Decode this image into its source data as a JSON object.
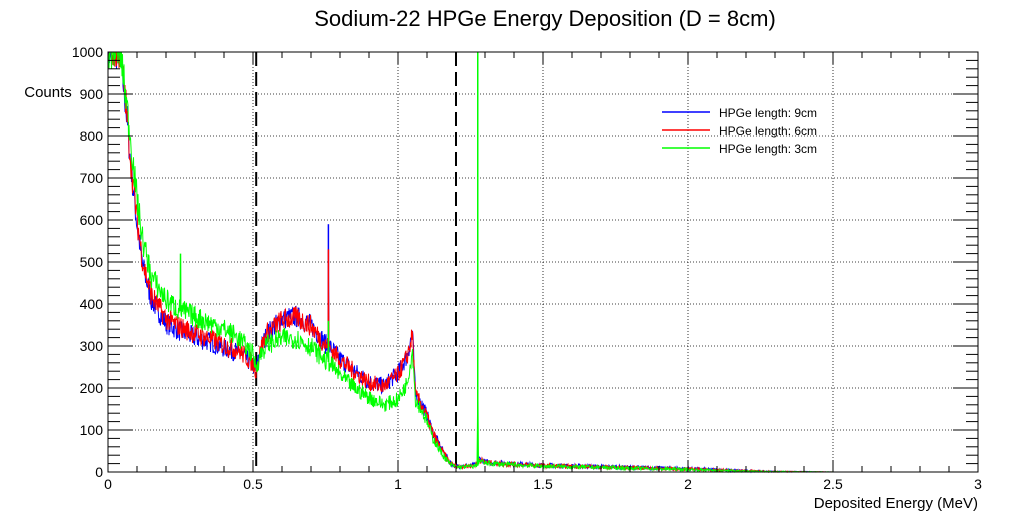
{
  "chart_data": {
    "type": "line",
    "title": "Sodium-22 HPGe Energy Deposition (D = 8cm)",
    "xlabel": "Deposited Energy (MeV)",
    "ylabel": "Counts",
    "xlim": [
      0,
      3
    ],
    "ylim": [
      0,
      1000
    ],
    "xticks": [
      "0",
      "0.5",
      "1",
      "1.5",
      "2",
      "2.5",
      "3"
    ],
    "xtick_values": [
      0,
      0.5,
      1,
      1.5,
      2,
      2.5,
      3
    ],
    "yticks": [
      "0",
      "100",
      "200",
      "300",
      "400",
      "500",
      "600",
      "700",
      "800",
      "900",
      "1000"
    ],
    "ytick_values": [
      0,
      100,
      200,
      300,
      400,
      500,
      600,
      700,
      800,
      900,
      1000
    ],
    "grid": true,
    "legend_position": "top-right",
    "vertical_markers": [
      {
        "x": 0.511,
        "style": "dashed"
      },
      {
        "x": 1.2,
        "style": "dashed"
      }
    ],
    "series": [
      {
        "name": "HPGe length: 9cm",
        "color": "#0000ff",
        "x": [
          0,
          0.03,
          0.04,
          0.05,
          0.06,
          0.08,
          0.1,
          0.12,
          0.15,
          0.2,
          0.25,
          0.3,
          0.35,
          0.4,
          0.45,
          0.5,
          0.51,
          0.53,
          0.55,
          0.6,
          0.65,
          0.7,
          0.75,
          0.759,
          0.76,
          0.761,
          0.8,
          0.85,
          0.9,
          0.95,
          1.0,
          1.03,
          1.05,
          1.06,
          1.08,
          1.1,
          1.12,
          1.15,
          1.18,
          1.2,
          1.25,
          1.27,
          1.28,
          1.3,
          1.4,
          1.5,
          1.75,
          2.0,
          2.2,
          2.3,
          2.5,
          3.0
        ],
        "y": [
          1000,
          1000,
          1000,
          940,
          880,
          720,
          590,
          490,
          410,
          355,
          335,
          320,
          310,
          295,
          285,
          255,
          240,
          300,
          330,
          365,
          370,
          350,
          305,
          300,
          590,
          300,
          270,
          240,
          215,
          205,
          235,
          275,
          330,
          185,
          165,
          135,
          95,
          55,
          22,
          13,
          15,
          17,
          32,
          24,
          19,
          16,
          12,
          8,
          3,
          1,
          0,
          0
        ]
      },
      {
        "name": "HPGe length: 6cm",
        "color": "#ff0000",
        "x": [
          0,
          0.03,
          0.04,
          0.05,
          0.06,
          0.08,
          0.1,
          0.12,
          0.15,
          0.2,
          0.25,
          0.3,
          0.35,
          0.4,
          0.45,
          0.5,
          0.51,
          0.53,
          0.55,
          0.6,
          0.65,
          0.7,
          0.75,
          0.759,
          0.76,
          0.761,
          0.8,
          0.85,
          0.9,
          0.95,
          1.0,
          1.03,
          1.05,
          1.06,
          1.08,
          1.1,
          1.12,
          1.15,
          1.18,
          1.2,
          1.25,
          1.27,
          1.28,
          1.3,
          1.4,
          1.5,
          1.75,
          2.0,
          2.2,
          2.3,
          2.5,
          3.0
        ],
        "y": [
          1000,
          1000,
          1000,
          950,
          890,
          730,
          600,
          500,
          420,
          365,
          345,
          330,
          318,
          302,
          290,
          258,
          242,
          300,
          332,
          362,
          368,
          348,
          302,
          298,
          530,
          298,
          268,
          238,
          213,
          203,
          232,
          272,
          325,
          182,
          162,
          132,
          92,
          52,
          21,
          13,
          15,
          17,
          30,
          23,
          18,
          15,
          11,
          7,
          3,
          1,
          0,
          0
        ]
      },
      {
        "name": "HPGe length: 3cm",
        "color": "#00ff00",
        "x": [
          0,
          0.03,
          0.04,
          0.05,
          0.06,
          0.08,
          0.1,
          0.12,
          0.15,
          0.2,
          0.249,
          0.25,
          0.251,
          0.3,
          0.35,
          0.4,
          0.45,
          0.5,
          0.51,
          0.53,
          0.55,
          0.6,
          0.65,
          0.7,
          0.75,
          0.759,
          0.76,
          0.761,
          0.8,
          0.85,
          0.9,
          0.95,
          1.0,
          1.03,
          1.05,
          1.06,
          1.08,
          1.1,
          1.12,
          1.15,
          1.18,
          1.2,
          1.25,
          1.274,
          1.275,
          1.276,
          1.28,
          1.3,
          1.4,
          1.5,
          1.75,
          2.0,
          2.2,
          2.3,
          2.5,
          3.0
        ],
        "y": [
          1000,
          1000,
          1000,
          960,
          900,
          780,
          650,
          550,
          465,
          410,
          385,
          520,
          385,
          370,
          355,
          340,
          320,
          280,
          250,
          285,
          305,
          318,
          318,
          298,
          265,
          262,
          360,
          262,
          230,
          200,
          178,
          160,
          172,
          210,
          290,
          172,
          150,
          120,
          82,
          45,
          18,
          12,
          13,
          15,
          1000,
          22,
          28,
          21,
          17,
          14,
          10,
          6,
          2,
          1,
          0,
          0
        ]
      }
    ]
  }
}
